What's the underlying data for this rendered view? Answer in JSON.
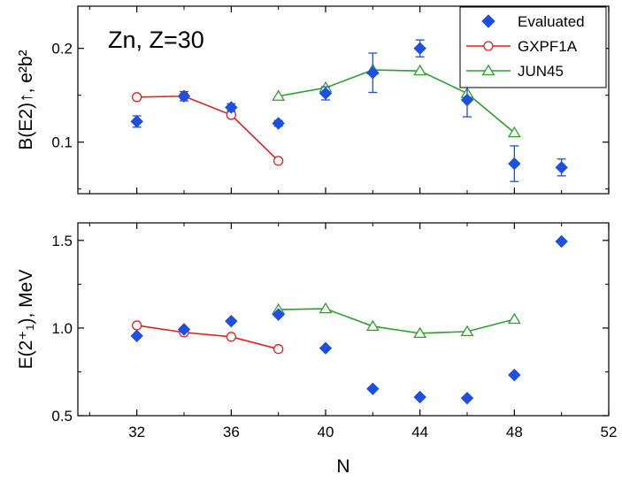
{
  "chart_data": {
    "type": "line",
    "colors": {
      "evaluated": "#1f4fe0",
      "gxpf1a": "#e02020",
      "jun45": "#2ca02c",
      "axis": "#000000"
    },
    "legend": [
      {
        "key": "evaluated",
        "label": "Evaluated",
        "marker": "diamond"
      },
      {
        "key": "gxpf1a",
        "label": "GXPF1A",
        "marker": "circle-open"
      },
      {
        "key": "jun45",
        "label": "JUN45",
        "marker": "triangle-open"
      }
    ],
    "x_axis": {
      "label": "N",
      "lim": [
        29.5,
        52
      ],
      "ticks": [
        32,
        36,
        40,
        44,
        48,
        52
      ]
    },
    "panels": [
      {
        "id": "be2",
        "annotation": "Zn, Z=30",
        "ylabel": "B(E2)↑, e²b²",
        "ylim": [
          0.045,
          0.245
        ],
        "yticks": [
          0.1,
          0.2
        ],
        "ytick_labels": [
          "0.1",
          "0.2"
        ],
        "evaluated": {
          "x": [
            32,
            34,
            36,
            38,
            40,
            42,
            44,
            46,
            48,
            50
          ],
          "y": [
            0.122,
            0.149,
            0.137,
            0.12,
            0.152,
            0.174,
            0.2,
            0.145,
            0.077,
            0.073
          ],
          "err": [
            0.006,
            0.005,
            0.004,
            0.003,
            0.007,
            0.021,
            0.009,
            0.018,
            0.019,
            0.009
          ]
        },
        "gxpf1a": {
          "x": [
            32,
            34,
            36,
            38
          ],
          "y": [
            0.148,
            0.149,
            0.129,
            0.08
          ]
        },
        "jun45": {
          "x": [
            38,
            40,
            42,
            44,
            46,
            48
          ],
          "y": [
            0.149,
            0.158,
            0.177,
            0.176,
            0.152,
            0.11
          ]
        }
      },
      {
        "id": "e2",
        "ylabel": "E(2⁺₁), MeV",
        "ylim": [
          0.5,
          1.6
        ],
        "yticks": [
          0.5,
          1.0,
          1.5
        ],
        "ytick_labels": [
          "0.5",
          "1.0",
          "1.5"
        ],
        "evaluated": {
          "x": [
            32,
            34,
            36,
            38,
            40,
            42,
            44,
            46,
            48,
            50
          ],
          "y": [
            0.955,
            0.992,
            1.039,
            1.077,
            0.885,
            0.653,
            0.606,
            0.6,
            0.732,
            1.494
          ],
          "err": []
        },
        "gxpf1a": {
          "x": [
            32,
            34,
            36,
            38
          ],
          "y": [
            1.015,
            0.975,
            0.95,
            0.88
          ]
        },
        "jun45": {
          "x": [
            38,
            40,
            42,
            44,
            46,
            48
          ],
          "y": [
            1.105,
            1.11,
            1.01,
            0.97,
            0.98,
            1.05
          ]
        }
      }
    ]
  }
}
